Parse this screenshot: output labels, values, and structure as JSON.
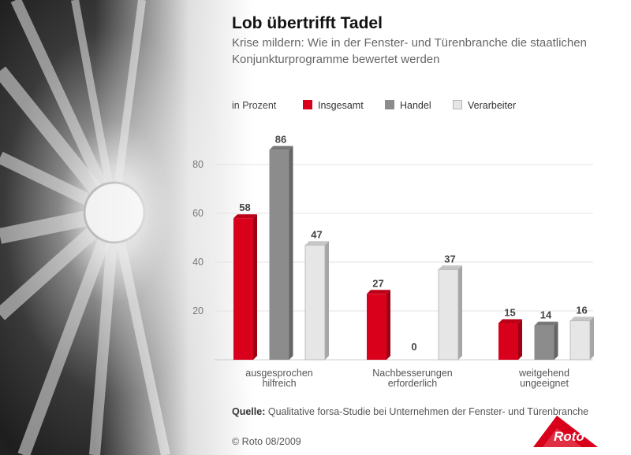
{
  "header": {
    "title": "Lob übertrifft Tadel",
    "subtitle": "Krise mildern: Wie in der Fenster- und Türenbranche die staatlichen Konjunkturprogramme bewertet werden"
  },
  "legend": {
    "unit": "in Prozent",
    "items": [
      {
        "label": "Insgesamt",
        "color": "#d9001b"
      },
      {
        "label": "Handel",
        "color": "#8c8c8c"
      },
      {
        "label": "Verarbeiter",
        "color": "#e6e6e6"
      }
    ]
  },
  "chart_data": {
    "type": "bar",
    "categories": [
      "ausgesprochen\nhilfreich",
      "Nachbesserungen\nerforderlich",
      "weitgehend\nungeeignet"
    ],
    "series": [
      {
        "name": "Insgesamt",
        "values": [
          58,
          27,
          15
        ],
        "color": "#d9001b"
      },
      {
        "name": "Handel",
        "values": [
          86,
          0,
          14
        ],
        "color": "#8c8c8c"
      },
      {
        "name": "Verarbeiter",
        "values": [
          47,
          37,
          16
        ],
        "color": "#e6e6e6"
      }
    ],
    "yticks": [
      20,
      40,
      60,
      80
    ],
    "ylim": [
      0,
      100
    ],
    "grid": true,
    "legend_position": "top"
  },
  "source": {
    "label": "Quelle:",
    "text": "Qualitative forsa-Studie bei Unternehmen der Fenster- und Türenbranche"
  },
  "copyright": "© Roto 08/2009",
  "logo": {
    "text": "Roto",
    "color": "#d9001b"
  }
}
